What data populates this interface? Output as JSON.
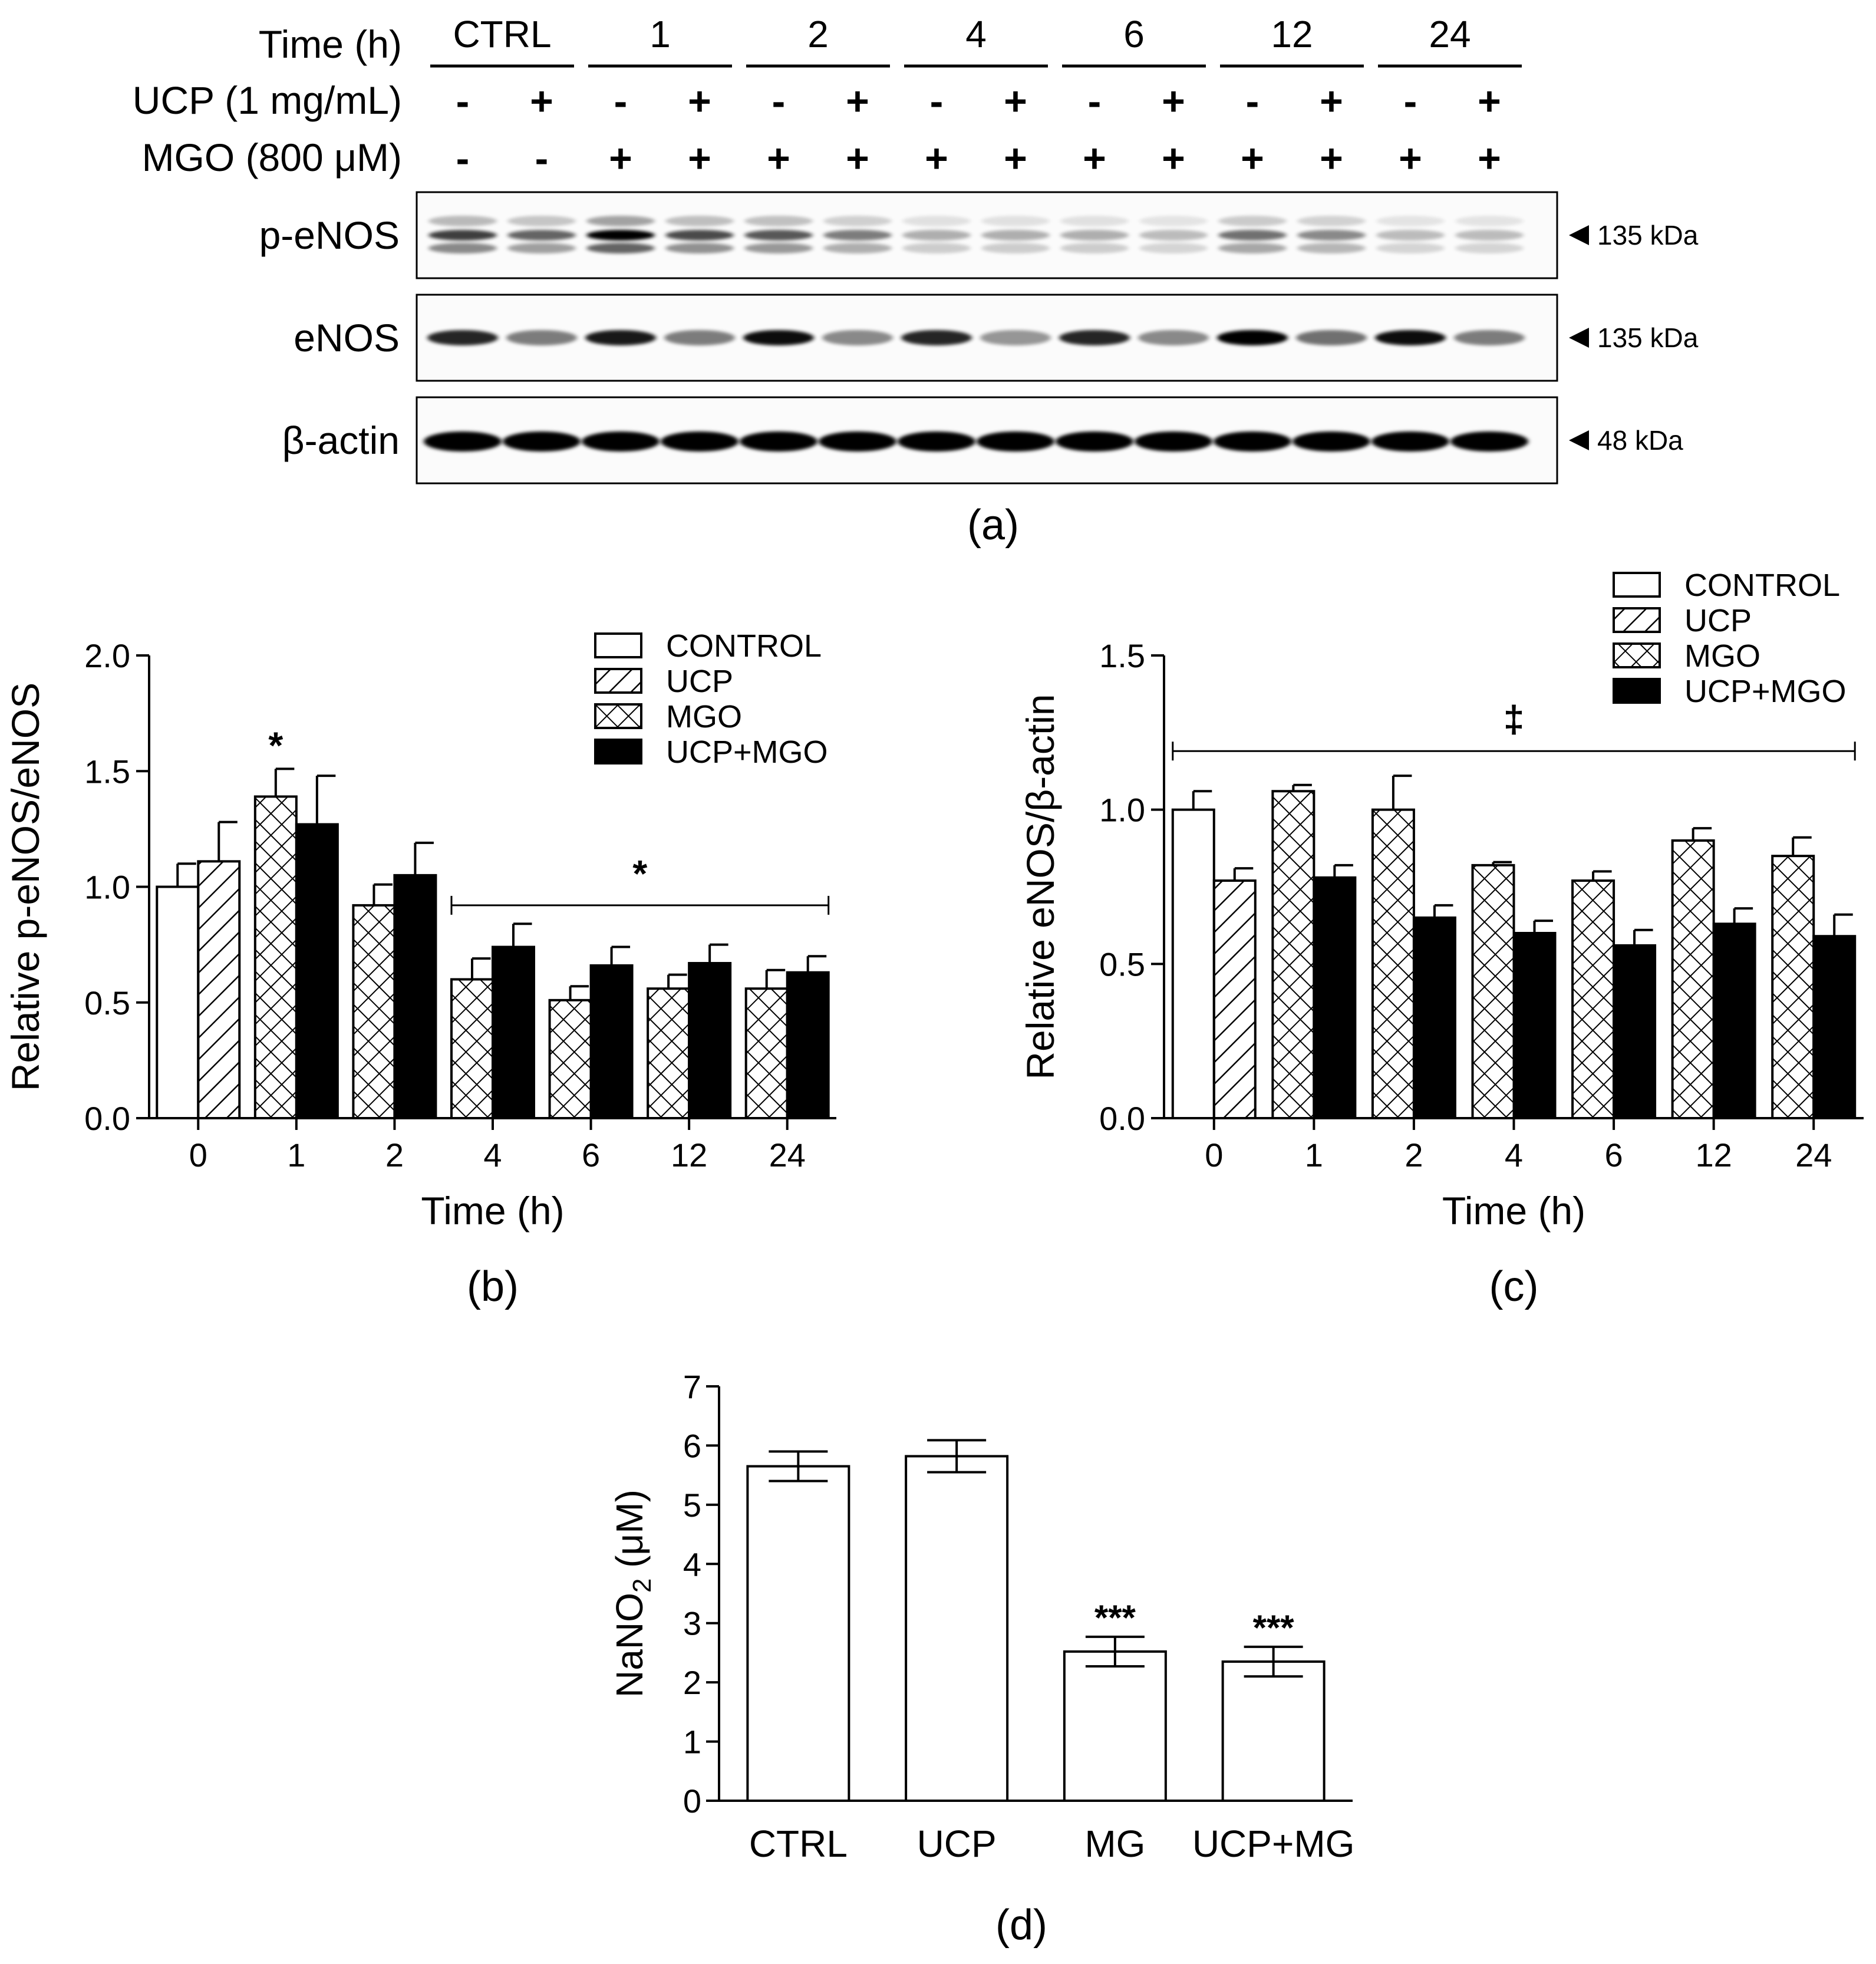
{
  "panel_a": {
    "row_labels": {
      "time": "Time (h)",
      "ucp": "UCP (1 mg/mL)",
      "mgo": "MGO (800 μM)"
    },
    "time_groups": [
      "CTRL",
      "1",
      "2",
      "4",
      "6",
      "12",
      "24"
    ],
    "ucp_signs": [
      "-",
      "+",
      "-",
      "+",
      "-",
      "+",
      "-",
      "+",
      "-",
      "+",
      "-",
      "+",
      "-",
      "+"
    ],
    "mgo_signs": [
      "-",
      "-",
      "+",
      "+",
      "+",
      "+",
      "+",
      "+",
      "+",
      "+",
      "+",
      "+",
      "+",
      "+"
    ],
    "blots": [
      {
        "name": "p-eNOS",
        "marker": "135 kDa",
        "intensity": [
          0.75,
          0.6,
          1.0,
          0.7,
          0.65,
          0.5,
          0.3,
          0.3,
          0.3,
          0.25,
          0.55,
          0.45,
          0.25,
          0.25
        ]
      },
      {
        "name": "eNOS",
        "marker": "135 kDa",
        "intensity": [
          0.85,
          0.5,
          0.9,
          0.5,
          0.95,
          0.45,
          0.85,
          0.4,
          0.85,
          0.45,
          1.0,
          0.55,
          0.95,
          0.5
        ]
      },
      {
        "name": "β-actin",
        "marker": "48 kDa",
        "intensity": [
          1,
          1,
          1,
          1,
          1,
          1,
          1,
          1,
          1,
          1,
          1,
          1,
          1,
          1
        ]
      }
    ],
    "caption": "(a)"
  },
  "chart_data": [
    {
      "type": "bar",
      "caption": "(b)",
      "xlabel": "Time (h)",
      "ylabel": "Relative p-eNOS/eNOS",
      "categories": [
        "0",
        "1",
        "2",
        "4",
        "6",
        "12",
        "24"
      ],
      "ylim": [
        0,
        2.0
      ],
      "yticks": [
        "0.0",
        "0.5",
        "1.0",
        "1.5",
        "2.0"
      ],
      "legend": [
        "CONTROL",
        "UCP",
        "MGO",
        "UCP+MGO"
      ],
      "bars": [
        {
          "category": "0",
          "group": "CONTROL",
          "value": 1.0,
          "err": 0.1
        },
        {
          "category": "0",
          "group": "UCP",
          "value": 1.11,
          "err": 0.17
        },
        {
          "category": "1",
          "group": "MGO",
          "value": 1.39,
          "err": 0.12
        },
        {
          "category": "1",
          "group": "UCP+MGO",
          "value": 1.27,
          "err": 0.21
        },
        {
          "category": "2",
          "group": "MGO",
          "value": 0.92,
          "err": 0.09
        },
        {
          "category": "2",
          "group": "UCP+MGO",
          "value": 1.05,
          "err": 0.14
        },
        {
          "category": "4",
          "group": "MGO",
          "value": 0.6,
          "err": 0.09
        },
        {
          "category": "4",
          "group": "UCP+MGO",
          "value": 0.74,
          "err": 0.1
        },
        {
          "category": "6",
          "group": "MGO",
          "value": 0.51,
          "err": 0.06
        },
        {
          "category": "6",
          "group": "UCP+MGO",
          "value": 0.66,
          "err": 0.08
        },
        {
          "category": "12",
          "group": "MGO",
          "value": 0.56,
          "err": 0.06
        },
        {
          "category": "12",
          "group": "UCP+MGO",
          "value": 0.67,
          "err": 0.08
        },
        {
          "category": "24",
          "group": "MGO",
          "value": 0.56,
          "err": 0.08
        },
        {
          "category": "24",
          "group": "UCP+MGO",
          "value": 0.63,
          "err": 0.07
        }
      ],
      "annotations": [
        {
          "text": "*",
          "category": "1",
          "group": "MGO"
        },
        {
          "text": "*",
          "span": [
            "4",
            "24"
          ],
          "y": 0.92
        }
      ]
    },
    {
      "type": "bar",
      "caption": "(c)",
      "xlabel": "Time (h)",
      "ylabel": "Relative eNOS/β-actin",
      "categories": [
        "0",
        "1",
        "2",
        "4",
        "6",
        "12",
        "24"
      ],
      "ylim": [
        0,
        1.5
      ],
      "yticks": [
        "0.0",
        "0.5",
        "1.0",
        "1.5"
      ],
      "legend": [
        "CONTROL",
        "UCP",
        "MGO",
        "UCP+MGO"
      ],
      "bars": [
        {
          "category": "0",
          "group": "CONTROL",
          "value": 1.0,
          "err": 0.06
        },
        {
          "category": "0",
          "group": "UCP",
          "value": 0.77,
          "err": 0.04
        },
        {
          "category": "1",
          "group": "MGO",
          "value": 1.06,
          "err": 0.02
        },
        {
          "category": "1",
          "group": "UCP+MGO",
          "value": 0.78,
          "err": 0.04
        },
        {
          "category": "2",
          "group": "MGO",
          "value": 1.0,
          "err": 0.11
        },
        {
          "category": "2",
          "group": "UCP+MGO",
          "value": 0.65,
          "err": 0.04
        },
        {
          "category": "4",
          "group": "MGO",
          "value": 0.82,
          "err": 0.01
        },
        {
          "category": "4",
          "group": "UCP+MGO",
          "value": 0.6,
          "err": 0.04
        },
        {
          "category": "6",
          "group": "MGO",
          "value": 0.77,
          "err": 0.03
        },
        {
          "category": "6",
          "group": "UCP+MGO",
          "value": 0.56,
          "err": 0.05
        },
        {
          "category": "12",
          "group": "MGO",
          "value": 0.9,
          "err": 0.04
        },
        {
          "category": "12",
          "group": "UCP+MGO",
          "value": 0.63,
          "err": 0.05
        },
        {
          "category": "24",
          "group": "MGO",
          "value": 0.85,
          "err": 0.06
        },
        {
          "category": "24",
          "group": "UCP+MGO",
          "value": 0.59,
          "err": 0.07
        }
      ],
      "annotations": [
        {
          "text": "‡",
          "span": [
            "0",
            "24"
          ],
          "y": 1.19
        }
      ]
    },
    {
      "type": "bar",
      "caption": "(d)",
      "ylabel_main": "NaNO",
      "ylabel_sub": "2",
      "ylabel_unit": "(μM)",
      "categories": [
        "CTRL",
        "UCP",
        "MG",
        "UCP+MG"
      ],
      "values": [
        5.65,
        5.82,
        2.52,
        2.35
      ],
      "errors": [
        0.25,
        0.27,
        0.25,
        0.25
      ],
      "ylim": [
        0,
        7
      ],
      "yticks": [
        "0",
        "1",
        "2",
        "3",
        "4",
        "5",
        "6",
        "7"
      ],
      "annotations": [
        "",
        "",
        "***",
        "***"
      ]
    }
  ]
}
